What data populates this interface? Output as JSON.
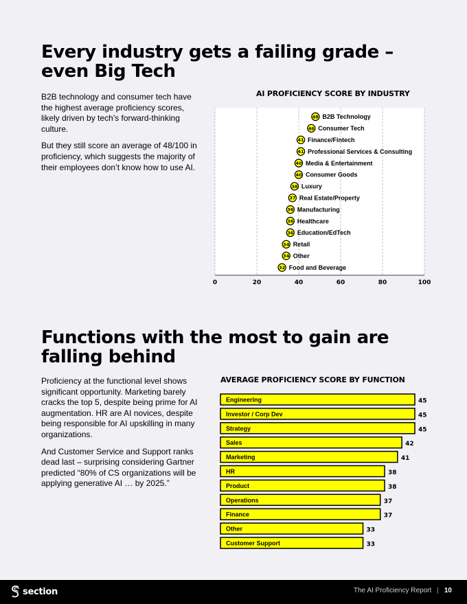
{
  "section1": {
    "heading_line1": "Every industry gets a failing grade –",
    "heading_line2": "even Big Tech",
    "para1": "B2B technology and consumer tech have the highest average proficiency scores, likely driven by tech’s forward-thinking culture.",
    "para2": "But they still score an average of 48/100 in proficiency, which suggests the majority of their employees don’t know how to use AI."
  },
  "section2": {
    "heading_line1": "Functions with the most to gain are",
    "heading_line2": "falling behind",
    "para1": "Proficiency at the functional level shows significant opportunity. Marketing barely cracks the top 5, despite being prime for AI augmentation. HR are AI novices, despite being responsible for AI upskilling in many organizations.",
    "para2": "And Customer Service and Support ranks dead last – surprising considering Gartner predicted “80% of CS organizations will be applying generative AI … by 2025.”"
  },
  "chart_data": [
    {
      "type": "scatter",
      "title": "AI PROFICIENCY SCORE BY INDUSTRY",
      "xlim": [
        0,
        100
      ],
      "xticks": [
        0,
        20,
        40,
        60,
        80,
        100
      ],
      "grid": "vertical dashed",
      "categories": [
        "B2B Technology",
        "Consumer Tech",
        "Finance/Fintech",
        "Professional Services & Consulting",
        "Media & Entertainment",
        "Consumer Goods",
        "Luxury",
        "Real Estate/Property",
        "Manufacturing",
        "Healthcare",
        "Education/EdTech",
        "Retail",
        "Other",
        "Food and Beverage"
      ],
      "values": [
        48,
        46,
        41,
        41,
        40,
        40,
        38,
        37,
        36,
        36,
        36,
        34,
        34,
        32
      ]
    },
    {
      "type": "bar",
      "orientation": "horizontal",
      "title": "AVERAGE PROFICIENCY SCORE BY FUNCTION",
      "xlim": [
        0,
        45
      ],
      "categories": [
        "Engineering",
        "Investor / Corp Dev",
        "Strategy",
        "Sales",
        "Marketing",
        "HR",
        "Product",
        "Operations",
        "Finance",
        "Other",
        "Customer Support"
      ],
      "values": [
        45,
        45,
        45,
        42,
        41,
        38,
        38,
        37,
        37,
        33,
        33
      ]
    }
  ],
  "colors": {
    "accent": "#ffff00",
    "footer_bg": "#000000",
    "page_bg": "#f0f0f5"
  },
  "footer": {
    "logo_icon": "section-s-icon",
    "logo_text": "section",
    "report_title": "The AI Proficiency Report",
    "separator": "|",
    "page_number": "10"
  }
}
